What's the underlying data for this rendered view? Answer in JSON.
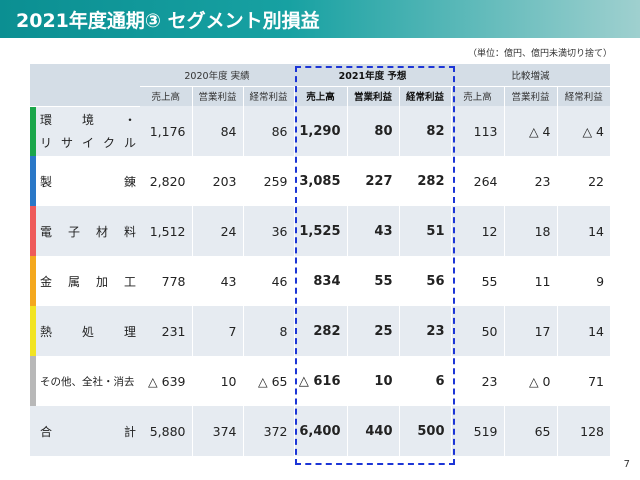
{
  "header": {
    "title": "2021年度通期③ セグメント別損益"
  },
  "unit_note": "（単位：億円、億円未満切り捨て）",
  "table": {
    "groups": {
      "fy2020": "2020年度 実績",
      "fy2021": "2021年度 予想",
      "diff": "比較増減"
    },
    "sub_headers": {
      "sales": "売上高",
      "op": "営業利益",
      "ord": "経常利益"
    },
    "rows": [
      {
        "label_line1": [
          "環",
          "境",
          "・"
        ],
        "label_line2": [
          "リ",
          "サ",
          "イ",
          "ク",
          "ル"
        ],
        "color": "#1aa64a",
        "v2020": [
          "1,176",
          "84",
          "86"
        ],
        "v2021": [
          "1,290",
          "80",
          "82"
        ],
        "diff": [
          "113",
          "△ 4",
          "△ 4"
        ]
      },
      {
        "label_chars": [
          "製",
          "錬"
        ],
        "color": "#2a78c7",
        "v2020": [
          "2,820",
          "203",
          "259"
        ],
        "v2021": [
          "3,085",
          "227",
          "282"
        ],
        "diff": [
          "264",
          "23",
          "22"
        ]
      },
      {
        "label_chars": [
          "電",
          "子",
          "材",
          "料"
        ],
        "color": "#ee5a5a",
        "v2020": [
          "1,512",
          "24",
          "36"
        ],
        "v2021": [
          "1,525",
          "43",
          "51"
        ],
        "diff": [
          "12",
          "18",
          "14"
        ]
      },
      {
        "label_chars": [
          "金",
          "属",
          "加",
          "工"
        ],
        "color": "#f4a81e",
        "v2020": [
          "778",
          "43",
          "46"
        ],
        "v2021": [
          "834",
          "55",
          "56"
        ],
        "diff": [
          "55",
          "11",
          "9"
        ]
      },
      {
        "label_chars": [
          "熱",
          "処",
          "理"
        ],
        "color": "#f2e422",
        "v2020": [
          "231",
          "7",
          "8"
        ],
        "v2021": [
          "282",
          "25",
          "23"
        ],
        "diff": [
          "50",
          "17",
          "14"
        ]
      },
      {
        "label": "その他、全社・消去",
        "color": "#b8b8b8",
        "v2020": [
          "△ 639",
          "10",
          "△ 65"
        ],
        "v2021": [
          "△ 616",
          "10",
          "6"
        ],
        "diff": [
          "23",
          "△ 0",
          "71"
        ]
      },
      {
        "label_chars": [
          "合",
          "計"
        ],
        "v2020": [
          "5,880",
          "374",
          "372"
        ],
        "v2021": [
          "6,400",
          "440",
          "500"
        ],
        "diff": [
          "519",
          "65",
          "128"
        ]
      }
    ]
  },
  "page_number": "7"
}
